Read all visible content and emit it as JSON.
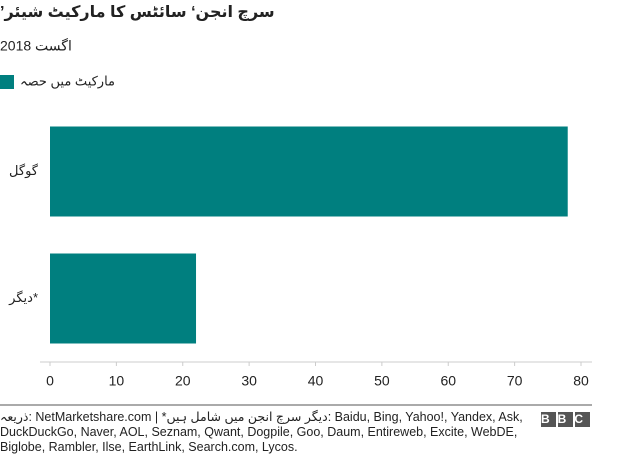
{
  "chart_data": {
    "type": "barh",
    "title": "’سرچ انجن‘ سائٹس کا مارکیٹ شیئر",
    "subtitle": "اگست 2018",
    "categories": [
      "گوگل",
      "دیگر*"
    ],
    "series": [
      {
        "name": "مارکیٹ میں حصہ",
        "color": "#007f7f",
        "values": [
          78,
          22
        ]
      }
    ],
    "xlim": [
      0,
      80
    ],
    "xticks": [
      0,
      10,
      20,
      30,
      40,
      50,
      60,
      70,
      80
    ],
    "grid": false
  },
  "footer": {
    "source": "ذریعہ: NetMarketshare.com | *دیگر سرچ انجن میں شامل ہیں: Baidu, Bing, Yahoo!, Yandex, Ask, DuckDuckGo, Naver, AOL, Seznam, Qwant, Dogpile, Goo, Daum, Entireweb, Excite, WebDE, Biglobe, Rambler, Ilse, EarthLink, Search.com, Lycos.",
    "logo": "BBC"
  }
}
